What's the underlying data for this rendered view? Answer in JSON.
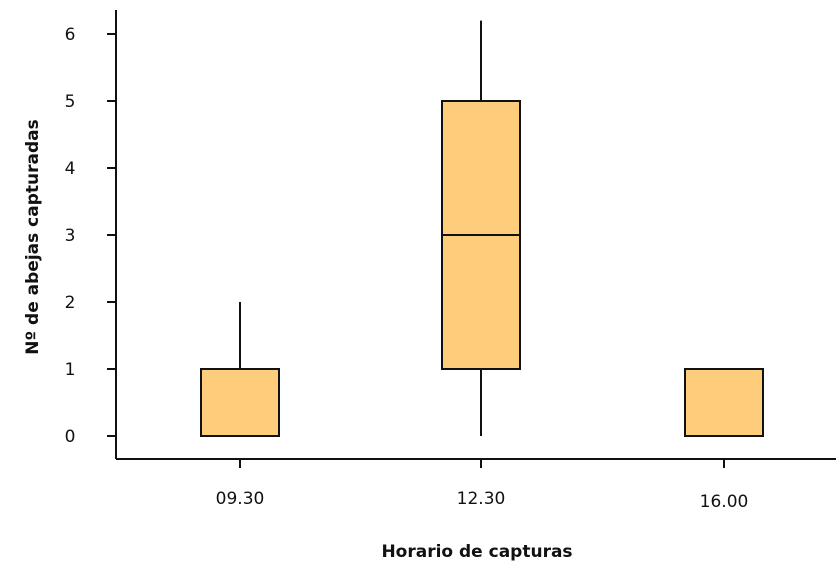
{
  "chart_data": {
    "type": "boxplot",
    "title": "",
    "xlabel": "Horario de capturas",
    "ylabel": "Nº de abejas capturadas",
    "ylim": [
      0,
      6
    ],
    "yticks": [
      "0",
      "1",
      "2",
      "3",
      "4",
      "5",
      "6"
    ],
    "categories": [
      "09.30",
      "12.30",
      "16.00"
    ],
    "boxes": [
      {
        "category": "09.30",
        "min": 0,
        "q1": 0,
        "median": 0,
        "q3": 1,
        "max": 2
      },
      {
        "category": "12.30",
        "min": 0,
        "q1": 1,
        "median": 3,
        "q3": 5,
        "max": 6.2
      },
      {
        "category": "16.00",
        "min": 0,
        "q1": 0,
        "median": 0,
        "q3": 1,
        "max": 1
      }
    ],
    "box_fill": "#FDCD7C",
    "line_color": "#111111",
    "grid": false,
    "legend": "none"
  }
}
